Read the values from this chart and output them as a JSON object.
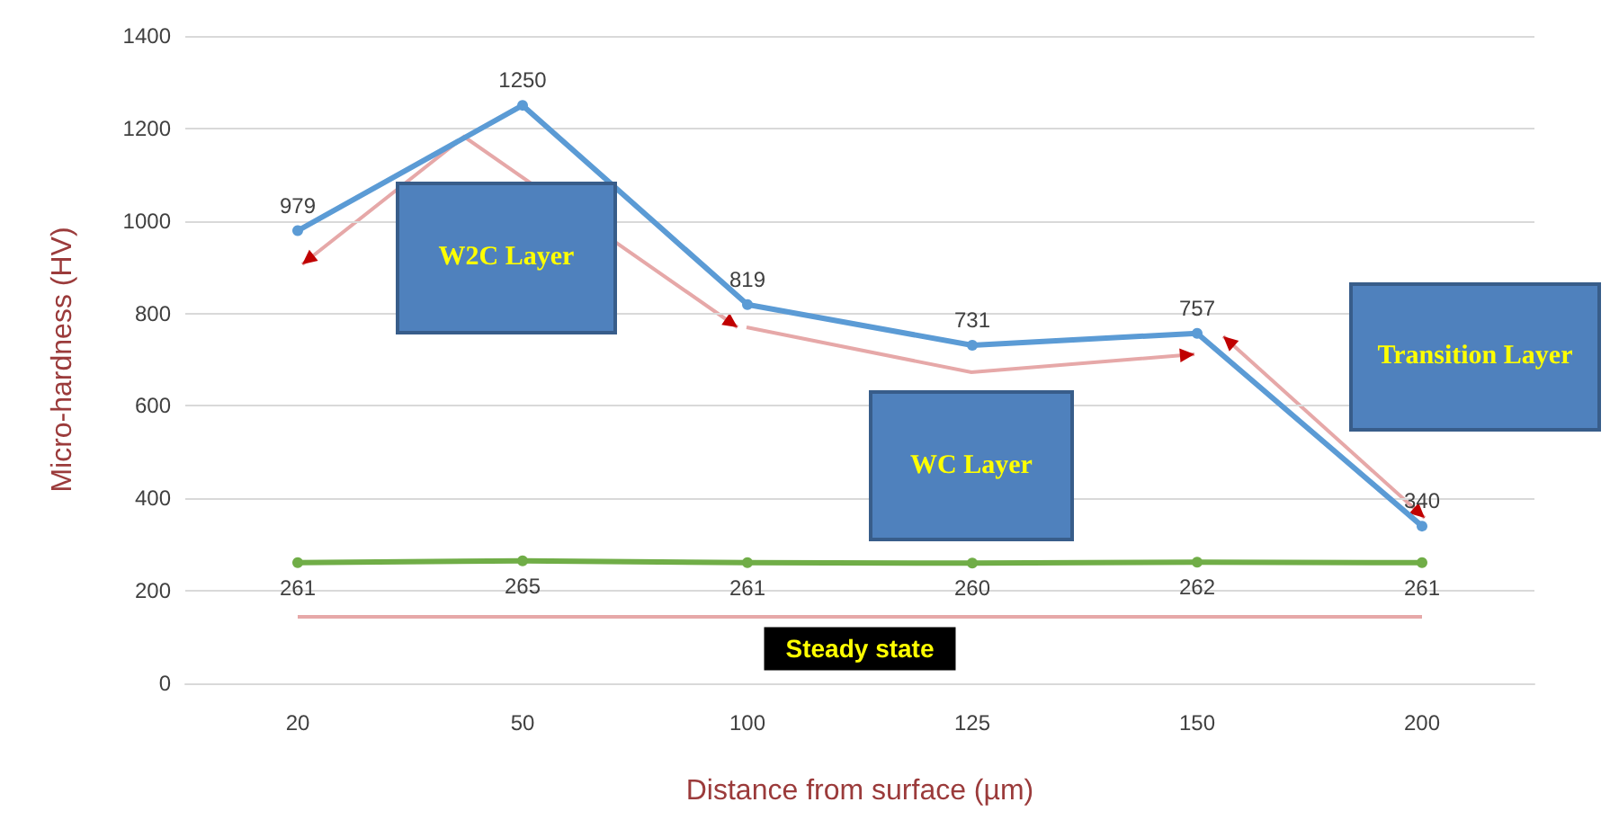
{
  "chart_data": {
    "type": "line",
    "xlabel": "Distance from surface (µm)",
    "ylabel": "Micro-hardness (HV)",
    "categories": [
      "20",
      "50",
      "100",
      "125",
      "150",
      "200"
    ],
    "series": [
      {
        "color": "#5b9bd5",
        "values": [
          979,
          1250,
          819,
          731,
          757,
          340
        ]
      },
      {
        "color": "#70ad47",
        "values": [
          261,
          265,
          261,
          260,
          262,
          261
        ]
      }
    ],
    "ylim": [
      0,
      1400
    ],
    "yticks": [
      0,
      200,
      400,
      600,
      800,
      1000,
      1200,
      1400
    ],
    "grid": "y",
    "marker": "circle",
    "line_style": "solid",
    "data_labels": true,
    "ref_lines": [
      {
        "axis": "y",
        "value": 145,
        "label": "Steady state",
        "color": "#e6a8a8"
      }
    ],
    "annotations": [
      "W2C Layer",
      "WC Layer",
      "Transition Layer"
    ]
  }
}
